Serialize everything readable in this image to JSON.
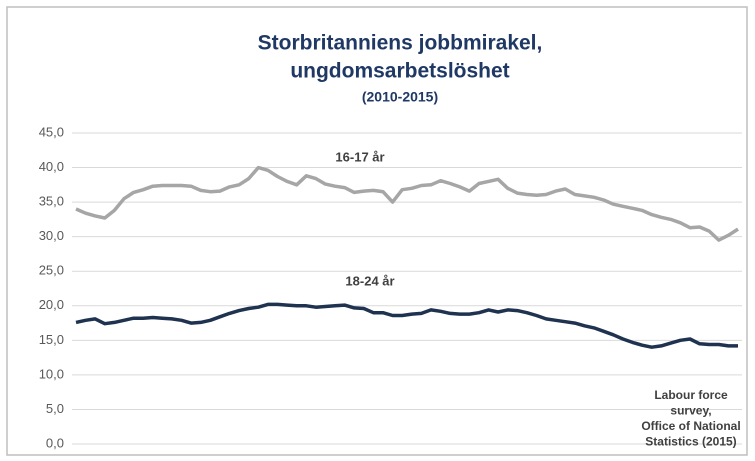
{
  "chart_data": {
    "type": "line",
    "title": [
      "Storbritanniens jobbmirakel,",
      "ungdomsarbetslöshet"
    ],
    "subtitle": "(2010-2015)",
    "ylim": [
      0,
      45
    ],
    "yticks": [
      {
        "value": 0,
        "label": "0,0"
      },
      {
        "value": 5,
        "label": "5,0"
      },
      {
        "value": 10,
        "label": "10,0"
      },
      {
        "value": 15,
        "label": "15,0"
      },
      {
        "value": 20,
        "label": "20,0"
      },
      {
        "value": 25,
        "label": "25,0"
      },
      {
        "value": 30,
        "label": "30,0"
      },
      {
        "value": 35,
        "label": "35,0"
      },
      {
        "value": 40,
        "label": "40,0"
      },
      {
        "value": 45,
        "label": "45,0"
      }
    ],
    "grid": true,
    "series": [
      {
        "name": "16-17 år",
        "color": "#a6a6a6",
        "values": [
          34.0,
          33.4,
          33.0,
          32.7,
          33.8,
          35.5,
          36.4,
          36.8,
          37.3,
          37.4,
          37.4,
          37.4,
          37.3,
          36.7,
          36.5,
          36.6,
          37.2,
          37.5,
          38.4,
          40.0,
          39.6,
          38.7,
          38.0,
          37.5,
          38.8,
          38.4,
          37.6,
          37.3,
          37.1,
          36.4,
          36.6,
          36.7,
          36.5,
          35.0,
          36.8,
          37.0,
          37.4,
          37.5,
          38.1,
          37.7,
          37.2,
          36.6,
          37.7,
          38.0,
          38.3,
          37.0,
          36.3,
          36.1,
          36.0,
          36.1,
          36.6,
          36.9,
          36.1,
          35.9,
          35.7,
          35.3,
          34.7,
          34.4,
          34.1,
          33.8,
          33.2,
          32.8,
          32.5,
          32.0,
          31.3,
          31.4,
          30.8,
          29.5,
          30.2,
          31.1
        ]
      },
      {
        "name": "18-24 år",
        "color": "#1f3350",
        "values": [
          17.6,
          17.9,
          18.1,
          17.4,
          17.6,
          17.9,
          18.2,
          18.2,
          18.3,
          18.2,
          18.1,
          17.9,
          17.5,
          17.6,
          17.9,
          18.4,
          18.9,
          19.3,
          19.6,
          19.8,
          20.2,
          20.2,
          20.1,
          20.0,
          20.0,
          19.8,
          19.9,
          20.0,
          20.1,
          19.7,
          19.6,
          19.0,
          19.0,
          18.6,
          18.6,
          18.8,
          18.9,
          19.4,
          19.2,
          18.9,
          18.8,
          18.8,
          19.0,
          19.4,
          19.1,
          19.4,
          19.3,
          19.0,
          18.6,
          18.1,
          17.9,
          17.7,
          17.5,
          17.1,
          16.8,
          16.3,
          15.8,
          15.2,
          14.7,
          14.3,
          14.0,
          14.2,
          14.6,
          15.0,
          15.2,
          14.5,
          14.4,
          14.4,
          14.2,
          14.2
        ]
      }
    ],
    "source": [
      "Labour force",
      "survey,",
      "Office of National",
      "Statistics (2015)"
    ]
  }
}
